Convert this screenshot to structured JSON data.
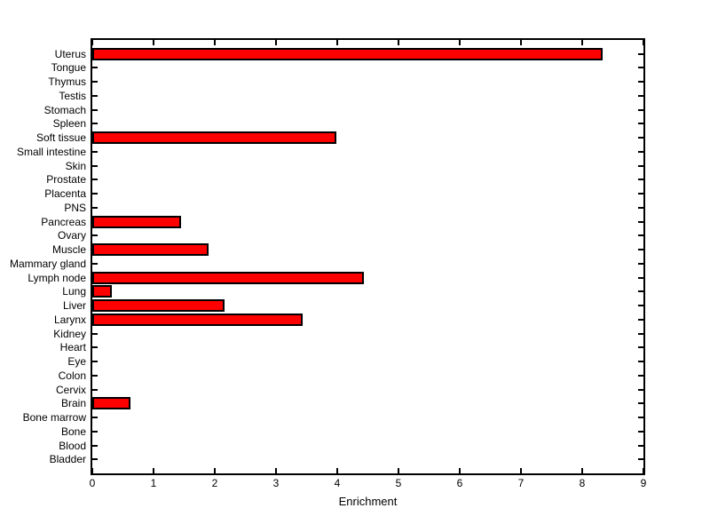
{
  "chart_data": {
    "type": "bar",
    "orientation": "horizontal",
    "title": "",
    "xlabel": "Enrichment",
    "ylabel": "",
    "xlim": [
      0,
      9
    ],
    "xticks": [
      0,
      1,
      2,
      3,
      4,
      5,
      6,
      7,
      8,
      9
    ],
    "grid": false,
    "legend": null,
    "background_color": "#FFFFFF",
    "bar_color": "#FF0000",
    "bar_edge_color": "#000000",
    "axis_color": "#000000",
    "categories": [
      "Uterus",
      "Tongue",
      "Thymus",
      "Testis",
      "Stomach",
      "Spleen",
      "Soft tissue",
      "Small intestine",
      "Skin",
      "Prostate",
      "Placenta",
      "PNS",
      "Pancreas",
      "Ovary",
      "Muscle",
      "Mammary gland",
      "Lymph node",
      "Lung",
      "Liver",
      "Larynx",
      "Kidney",
      "Heart",
      "Eye",
      "Colon",
      "Cervix",
      "Brain",
      "Bone marrow",
      "Bone",
      "Blood",
      "Bladder"
    ],
    "values": [
      8.33,
      0,
      0,
      0,
      0,
      0,
      3.99,
      0,
      0,
      0,
      0,
      0,
      1.45,
      0,
      1.9,
      0,
      4.43,
      0.32,
      2.16,
      3.43,
      0,
      0,
      0,
      0,
      0,
      0.62,
      0,
      0,
      0,
      0
    ]
  }
}
